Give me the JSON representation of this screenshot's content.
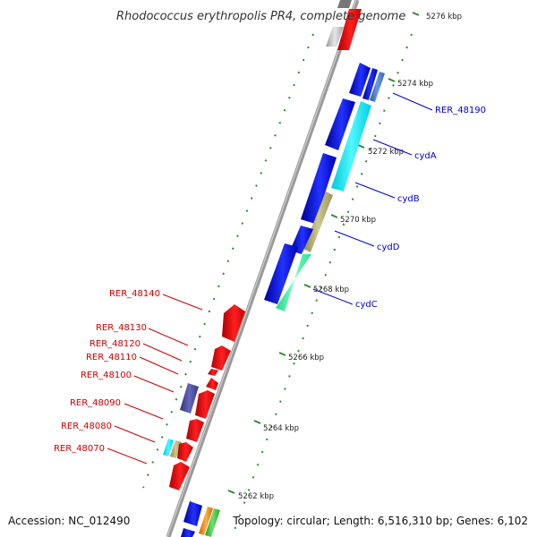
{
  "title": "Rhodococcus erythropolis PR4, complete genome",
  "footer": {
    "accession": "Accession: NC_012490",
    "summary": "Topology: circular; Length: 6,516,310 bp; Genes: 6,102"
  },
  "colors": {
    "backbone": "#999999",
    "forward_label": "#0000cc",
    "reverse_label": "#cc0000",
    "tick": "#2d8a2d"
  },
  "kbp_labels": [
    "5276 kbp",
    "5274 kbp",
    "5272 kbp",
    "5270 kbp",
    "5268 kbp",
    "5266 kbp",
    "5264 kbp",
    "5262 kbp"
  ],
  "forward_labels": [
    "RER_48190",
    "cydA",
    "cydB",
    "cydD",
    "cydC"
  ],
  "reverse_labels": [
    "RER_48140",
    "RER_48130",
    "RER_48120",
    "RER_48110",
    "RER_48100",
    "RER_48090",
    "RER_48080",
    "RER_48070"
  ]
}
